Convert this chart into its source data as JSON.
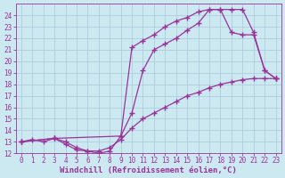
{
  "background_color": "#cce8f0",
  "grid_color": "#aac8d8",
  "line_color": "#993399",
  "marker": "+",
  "markersize": 4,
  "linewidth": 0.9,
  "xlabel": "Windchill (Refroidissement éolien,°C)",
  "xlabel_fontsize": 6.5,
  "tick_fontsize": 5.5,
  "xlim": [
    -0.5,
    23.5
  ],
  "ylim": [
    12,
    25
  ],
  "yticks": [
    12,
    13,
    14,
    15,
    16,
    17,
    18,
    19,
    20,
    21,
    22,
    23,
    24
  ],
  "xticks": [
    0,
    1,
    2,
    3,
    4,
    5,
    6,
    7,
    8,
    9,
    10,
    11,
    12,
    13,
    14,
    15,
    16,
    17,
    18,
    19,
    20,
    21,
    22,
    23
  ],
  "curve1_x": [
    0,
    1,
    2,
    3,
    4,
    5,
    6,
    7,
    8,
    9,
    10,
    11,
    12,
    13,
    14,
    15,
    16,
    17,
    18,
    19,
    20,
    21,
    22,
    23
  ],
  "curve1_y": [
    13.0,
    13.2,
    13.0,
    13.3,
    12.8,
    12.3,
    12.2,
    12.2,
    12.5,
    13.2,
    14.2,
    15.0,
    15.5,
    16.0,
    16.5,
    17.0,
    17.3,
    17.7,
    18.0,
    18.2,
    18.4,
    18.5,
    18.5,
    18.5
  ],
  "curve2_x": [
    0,
    3,
    4,
    5,
    6,
    7,
    8,
    9,
    10,
    11,
    12,
    13,
    14,
    15,
    16,
    17,
    18,
    19,
    20,
    21,
    22,
    23
  ],
  "curve2_y": [
    13.0,
    13.3,
    13.0,
    12.5,
    12.2,
    12.0,
    12.2,
    13.5,
    15.5,
    19.2,
    21.0,
    21.5,
    22.0,
    22.7,
    23.3,
    24.5,
    24.5,
    22.5,
    22.3,
    22.3,
    19.2,
    18.5
  ],
  "curve3_x": [
    0,
    3,
    9,
    10,
    11,
    12,
    13,
    14,
    15,
    16,
    17,
    18,
    19,
    20,
    21,
    22,
    23
  ],
  "curve3_y": [
    13.0,
    13.3,
    13.5,
    21.2,
    21.8,
    22.3,
    23.0,
    23.5,
    23.8,
    24.3,
    24.5,
    24.5,
    24.5,
    24.5,
    22.5,
    19.2,
    18.5
  ]
}
